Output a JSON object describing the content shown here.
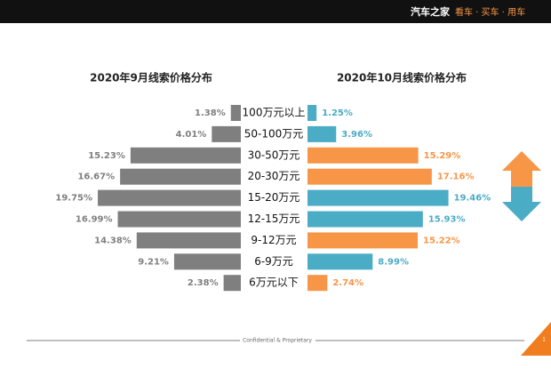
{
  "header": {
    "brand": "汽车之家",
    "slogan": "看车 · 买车 · 用车"
  },
  "chart_data": {
    "type": "butterfly",
    "categories": [
      "100万元以上",
      "50-100万元",
      "30-50万元",
      "20-30万元",
      "15-20万元",
      "12-15万元",
      "9-12万元",
      "6-9万元",
      "6万元以下"
    ],
    "series": [
      {
        "name": "2020年9月线索价格分布",
        "color": "#7f7f7f",
        "values": [
          1.38,
          4.01,
          15.23,
          16.67,
          19.75,
          16.99,
          14.38,
          9.21,
          2.38
        ],
        "value_labels": [
          "1.38%",
          "4.01%",
          "15.23%",
          "16.67%",
          "19.75%",
          "16.99%",
          "14.38%",
          "9.21%",
          "2.38%"
        ]
      },
      {
        "name": "2020年10月线索价格分布",
        "colors": [
          "#4bacc6",
          "#4bacc6",
          "#f79646",
          "#f79646",
          "#4bacc6",
          "#4bacc6",
          "#f79646",
          "#4bacc6",
          "#f79646"
        ],
        "values": [
          1.25,
          3.96,
          15.29,
          17.16,
          19.46,
          15.93,
          15.22,
          8.99,
          2.74
        ],
        "value_labels": [
          "1.25%",
          "3.96%",
          "15.29%",
          "17.16%",
          "19.46%",
          "15.93%",
          "15.22%",
          "8.99%",
          "2.74%"
        ]
      }
    ]
  },
  "footer": {
    "text": "Confidential & Proprietary",
    "page": "1"
  }
}
